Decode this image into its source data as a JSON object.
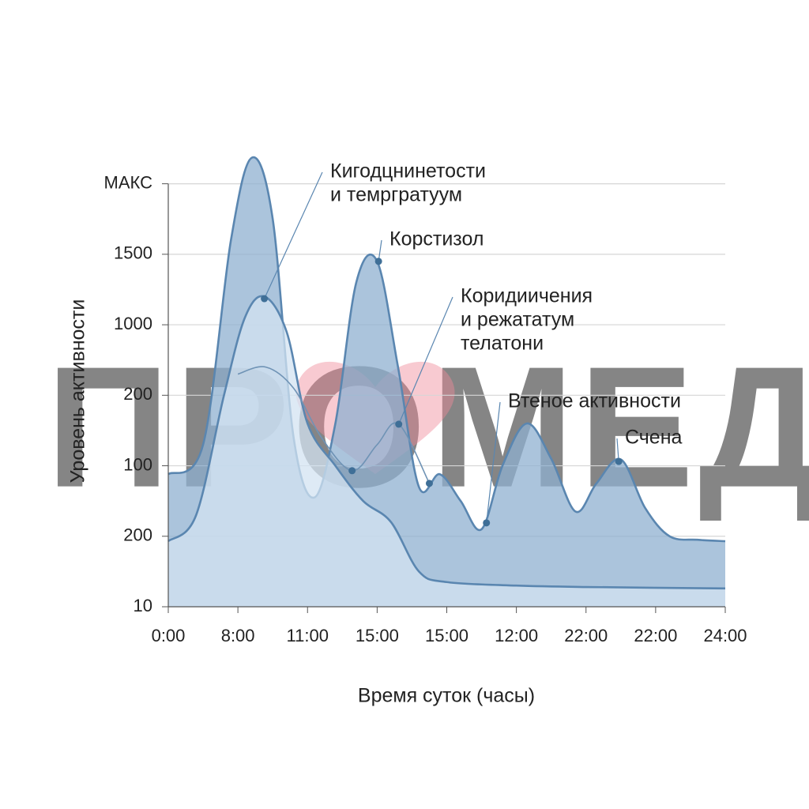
{
  "chart_data": {
    "type": "area",
    "watermark": "ПРОМЕД",
    "xlabel": "Время суток (часы)",
    "ylabel": "Уровень активности",
    "xlim": [
      0,
      8
    ],
    "ylim": [
      0,
      6.5
    ],
    "xticks": [
      {
        "value": 0,
        "label": "0:00"
      },
      {
        "value": 1,
        "label": "8:00"
      },
      {
        "value": 2,
        "label": "11:00"
      },
      {
        "value": 3,
        "label": "15:00"
      },
      {
        "value": 4,
        "label": "15:00"
      },
      {
        "value": 5,
        "label": "12:00"
      },
      {
        "value": 6,
        "label": "22:00"
      },
      {
        "value": 7,
        "label": "22:00"
      },
      {
        "value": 8,
        "label": "24:00"
      }
    ],
    "yticks": [
      {
        "value": 0,
        "label": "10"
      },
      {
        "value": 1,
        "label": "200"
      },
      {
        "value": 2,
        "label": "100"
      },
      {
        "value": 3,
        "label": "200"
      },
      {
        "value": 4,
        "label": "1000"
      },
      {
        "value": 5,
        "label": "1500"
      },
      {
        "value": 6,
        "label": "МАКС"
      }
    ],
    "grid": true,
    "series": [
      {
        "color": "#5a86b0",
        "fill": "#8fb0d0",
        "x": [
          0,
          0.5,
          0.9,
          1.2,
          1.5,
          1.8,
          2.1,
          2.4,
          2.7,
          3.0,
          3.3,
          3.6,
          3.9,
          4.2,
          4.5,
          4.8,
          5.15,
          5.5,
          5.85,
          6.15,
          6.5,
          6.85,
          7.2,
          7.6,
          8
        ],
        "values": [
          1.88,
          2.3,
          5.2,
          6.37,
          5.5,
          2.4,
          1.55,
          2.6,
          4.6,
          4.9,
          3.4,
          1.7,
          1.88,
          1.5,
          1.1,
          2.0,
          2.6,
          2.1,
          1.35,
          1.75,
          2.09,
          1.4,
          1.0,
          0.95,
          0.93
        ]
      },
      {
        "color": "#5a86b0",
        "fill": "#d3e3f1",
        "x": [
          0,
          0.4,
          0.8,
          1.1,
          1.38,
          1.7,
          2.0,
          2.4,
          2.8,
          3.2,
          3.6,
          4.0,
          5,
          6,
          8
        ],
        "values": [
          0.93,
          1.3,
          3.0,
          4.1,
          4.4,
          3.9,
          2.6,
          2.0,
          1.5,
          1.2,
          0.5,
          0.35,
          0.3,
          0.28,
          0.26
        ]
      },
      {
        "color": "#6f93b5",
        "x": [
          1.0,
          1.4,
          1.8,
          2.2,
          2.64,
          3.0,
          3.31,
          3.75
        ],
        "values": [
          3.3,
          3.4,
          3.1,
          2.4,
          1.93,
          2.3,
          2.59,
          1.75
        ]
      }
    ],
    "dots": [
      {
        "x": 2.64,
        "y": 1.93
      },
      {
        "x": 3.75,
        "y": 1.75
      }
    ],
    "annotations": [
      {
        "lines": [
          "Кигодцнинетости",
          "и темргратуум"
        ],
        "x": 1.38,
        "y": 4.37
      },
      {
        "lines": [
          "Корстизол"
        ],
        "x": 3.02,
        "y": 4.9
      },
      {
        "lines": [
          "Коридиичения",
          "и режататум",
          "телатони"
        ],
        "x": 3.31,
        "y": 2.59
      },
      {
        "lines": [
          "Втеное активности"
        ],
        "x": 4.57,
        "y": 1.19
      },
      {
        "lines": [
          "Счена"
        ],
        "x": 6.47,
        "y": 2.06
      }
    ]
  }
}
